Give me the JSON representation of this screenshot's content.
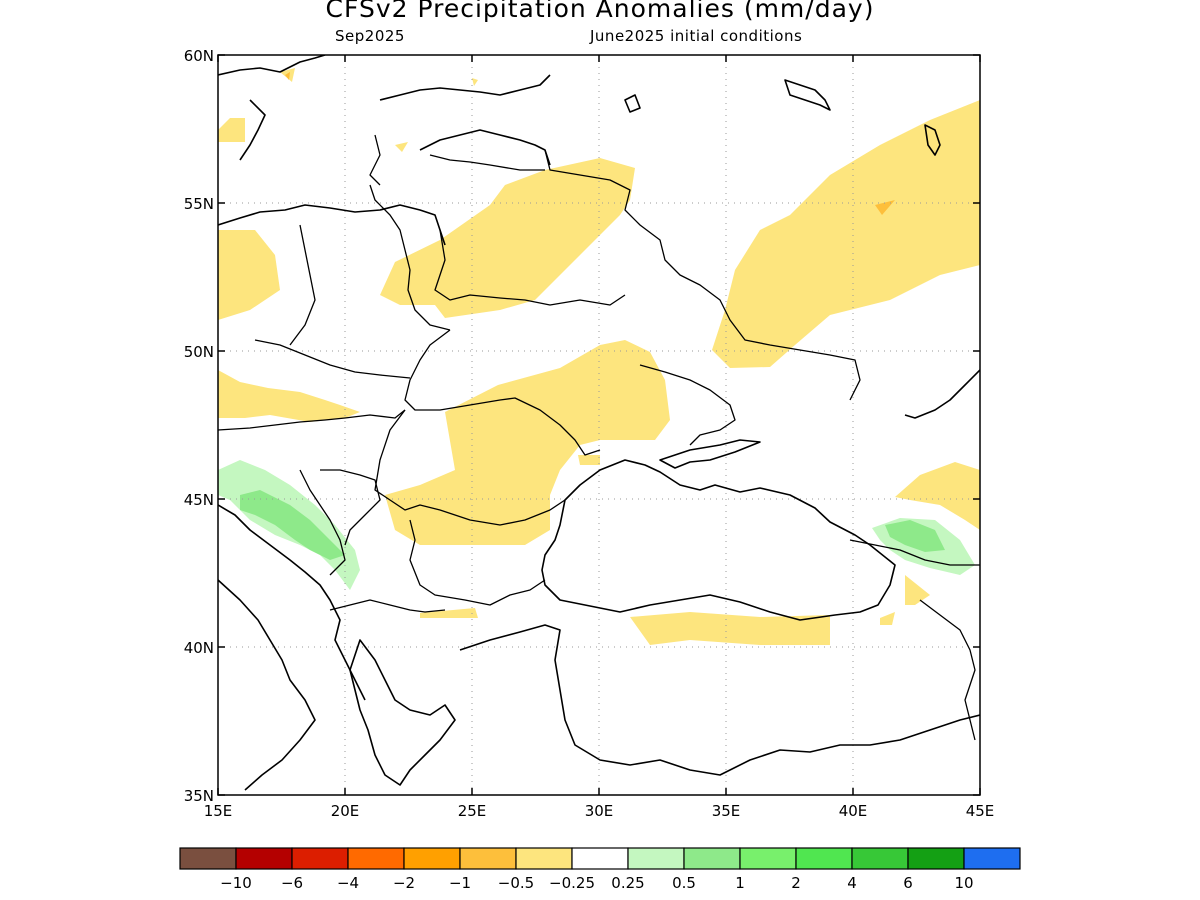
{
  "title": "CFSv2 Precipitation Anomalies (mm/day)",
  "subtitle_left": "Sep2025",
  "subtitle_right": "June2025 initial conditions",
  "map": {
    "lon_range": [
      15,
      45
    ],
    "lat_range": [
      35,
      60
    ],
    "lon_ticks": [
      "15E",
      "20E",
      "25E",
      "30E",
      "35E",
      "40E",
      "45E"
    ],
    "lat_ticks": [
      "35N",
      "40N",
      "45N",
      "50N",
      "55N",
      "60N"
    ],
    "grid": true,
    "colors": {
      "dry_light": "#fde57e",
      "dry_mid": "#fdbf3b",
      "wet_light": "#c4f7c0",
      "wet_mid": "#8ee98a",
      "coast": "#000000"
    }
  },
  "colorbar": {
    "colors": [
      "#7a4f3f",
      "#b40000",
      "#dc1e00",
      "#ff6a00",
      "#ffa000",
      "#fdbf3b",
      "#fde57e",
      "#ffffff",
      "#c4f7c0",
      "#8ee98a",
      "#78f06c",
      "#50e650",
      "#37c837",
      "#14a014",
      "#1e6ef0"
    ],
    "labels": [
      "−10",
      "−6",
      "−4",
      "−2",
      "−1",
      "−0.5",
      "−0.25",
      "0.25",
      "0.5",
      "1",
      "2",
      "4",
      "6",
      "10"
    ]
  }
}
